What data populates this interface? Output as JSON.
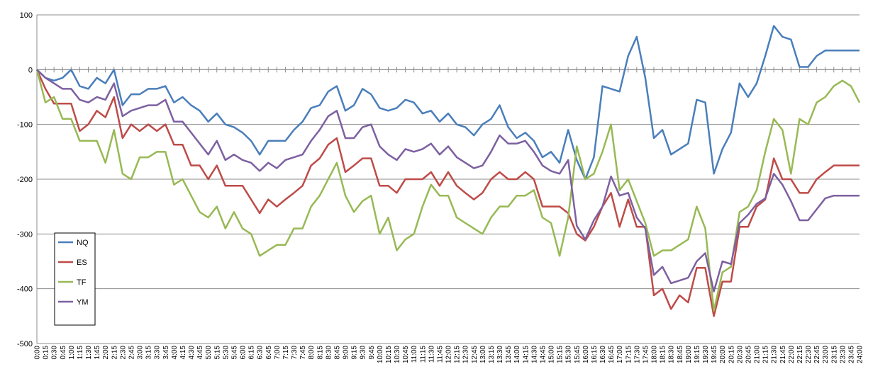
{
  "chart_data": {
    "type": "line",
    "title": "",
    "xlabel": "",
    "ylabel": "",
    "ylim": [
      -500,
      100
    ],
    "yticks": [
      100,
      0,
      -100,
      -200,
      -300,
      -400,
      -500
    ],
    "grid": "horizontal",
    "legend_position": "bottom-left",
    "x": [
      "0:00",
      "0:15",
      "0:30",
      "0:45",
      "1:00",
      "1:15",
      "1:30",
      "1:45",
      "2:00",
      "2:15",
      "2:30",
      "2:45",
      "3:00",
      "3:15",
      "3:30",
      "3:45",
      "4:00",
      "4:15",
      "4:30",
      "4:45",
      "5:00",
      "5:15",
      "5:30",
      "5:45",
      "6:00",
      "6:15",
      "6:30",
      "6:45",
      "7:00",
      "7:15",
      "7:30",
      "7:45",
      "8:00",
      "8:15",
      "8:30",
      "8:45",
      "9:00",
      "9:15",
      "9:30",
      "9:45",
      "10:00",
      "10:15",
      "10:30",
      "10:45",
      "11:00",
      "11:15",
      "11:30",
      "11:45",
      "12:00",
      "12:15",
      "12:30",
      "12:45",
      "13:00",
      "13:15",
      "13:30",
      "13:45",
      "14:00",
      "14:15",
      "14:30",
      "14:45",
      "15:00",
      "15:15",
      "15:30",
      "15:45",
      "16:00",
      "16:15",
      "16:30",
      "16:45",
      "17:00",
      "17:15",
      "17:30",
      "17:45",
      "18:00",
      "18:15",
      "18:30",
      "18:45",
      "19:00",
      "19:15",
      "19:30",
      "19:45",
      "20:00",
      "20:15",
      "20:30",
      "20:45",
      "21:00",
      "21:15",
      "21:30",
      "21:45",
      "22:00",
      "22:15",
      "22:30",
      "22:45",
      "23:00",
      "23:15",
      "23:30",
      "23:45",
      "24:00"
    ],
    "series": [
      {
        "name": "NQ",
        "color": "#4a7ebb",
        "values": [
          0,
          -15,
          -20,
          -15,
          0,
          -30,
          -35,
          -15,
          -25,
          0,
          -65,
          -45,
          -45,
          -35,
          -35,
          -30,
          -60,
          -50,
          -65,
          -75,
          -95,
          -80,
          -100,
          -105,
          -115,
          -130,
          -155,
          -130,
          -130,
          -130,
          -110,
          -95,
          -70,
          -65,
          -40,
          -30,
          -75,
          -65,
          -35,
          -45,
          -70,
          -75,
          -70,
          -55,
          -60,
          -80,
          -75,
          -95,
          -80,
          -100,
          -105,
          -120,
          -100,
          -90,
          -65,
          -105,
          -125,
          -115,
          -130,
          -160,
          -150,
          -170,
          -110,
          -165,
          -200,
          -160,
          -30,
          -35,
          -40,
          25,
          60,
          -15,
          -125,
          -110,
          -155,
          -145,
          -135,
          -55,
          -60,
          -190,
          -145,
          -115,
          -25,
          -50,
          -25,
          25,
          80,
          60,
          55,
          5,
          5,
          25,
          35,
          35,
          35,
          35,
          35
        ]
      },
      {
        "name": "ES",
        "color": "#be4b48",
        "values": [
          0,
          -35,
          -62,
          -62,
          -62,
          -112,
          -100,
          -75,
          -87,
          -50,
          -125,
          -100,
          -112,
          -100,
          -112,
          -100,
          -137,
          -137,
          -175,
          -175,
          -200,
          -175,
          -212,
          -212,
          -212,
          -237,
          -262,
          -237,
          -250,
          -237,
          -225,
          -212,
          -175,
          -162,
          -137,
          -125,
          -187,
          -175,
          -162,
          -162,
          -212,
          -212,
          -225,
          -200,
          -200,
          -200,
          -187,
          -212,
          -187,
          -212,
          -225,
          -237,
          -225,
          -200,
          -187,
          -200,
          -200,
          -187,
          -200,
          -250,
          -250,
          -250,
          -262,
          -300,
          -312,
          -287,
          -250,
          -225,
          -287,
          -237,
          -287,
          -287,
          -412,
          -400,
          -437,
          -412,
          -425,
          -362,
          -362,
          -450,
          -387,
          -387,
          -287,
          -287,
          -250,
          -237,
          -162,
          -200,
          -200,
          -225,
          -225,
          -200,
          -187,
          -175,
          -175,
          -175,
          -175
        ]
      },
      {
        "name": "TF",
        "color": "#98b954",
        "values": [
          0,
          -60,
          -50,
          -90,
          -90,
          -130,
          -130,
          -130,
          -170,
          -110,
          -190,
          -200,
          -160,
          -160,
          -150,
          -150,
          -210,
          -200,
          -230,
          -260,
          -270,
          -250,
          -290,
          -260,
          -290,
          -300,
          -340,
          -330,
          -320,
          -320,
          -290,
          -290,
          -250,
          -230,
          -200,
          -170,
          -230,
          -260,
          -240,
          -230,
          -300,
          -270,
          -330,
          -310,
          -300,
          -250,
          -210,
          -230,
          -230,
          -270,
          -280,
          -290,
          -300,
          -270,
          -250,
          -250,
          -230,
          -230,
          -220,
          -270,
          -280,
          -340,
          -270,
          -140,
          -200,
          -190,
          -150,
          -100,
          -220,
          -200,
          -240,
          -280,
          -340,
          -330,
          -330,
          -320,
          -310,
          -250,
          -290,
          -440,
          -370,
          -360,
          -260,
          -250,
          -220,
          -150,
          -90,
          -110,
          -190,
          -90,
          -100,
          -60,
          -50,
          -30,
          -20,
          -30,
          -60
        ]
      },
      {
        "name": "YM",
        "color": "#7d60a0",
        "values": [
          0,
          -15,
          -25,
          -35,
          -35,
          -55,
          -60,
          -50,
          -55,
          -25,
          -85,
          -75,
          -70,
          -65,
          -65,
          -55,
          -95,
          -95,
          -115,
          -135,
          -155,
          -130,
          -165,
          -155,
          -165,
          -170,
          -185,
          -170,
          -180,
          -165,
          -160,
          -155,
          -130,
          -110,
          -85,
          -75,
          -125,
          -125,
          -105,
          -100,
          -140,
          -155,
          -165,
          -145,
          -150,
          -145,
          -135,
          -155,
          -140,
          -160,
          -170,
          -180,
          -175,
          -150,
          -120,
          -135,
          -135,
          -130,
          -150,
          -175,
          -185,
          -190,
          -165,
          -285,
          -310,
          -275,
          -250,
          -195,
          -230,
          -225,
          -270,
          -290,
          -375,
          -360,
          -390,
          -385,
          -380,
          -350,
          -335,
          -405,
          -350,
          -355,
          -280,
          -265,
          -245,
          -235,
          -190,
          -210,
          -240,
          -275,
          -275,
          -255,
          -235,
          -230,
          -230,
          -230,
          -230
        ]
      }
    ]
  }
}
